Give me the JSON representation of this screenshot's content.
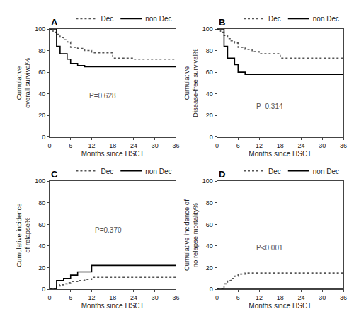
{
  "chart_data": [
    {
      "type": "step",
      "title": "A",
      "x_label": "Months since HSCT",
      "y_label": "Cumulative overall survival%",
      "annotations": [
        "P=0.628"
      ],
      "xlim": [
        0,
        36
      ],
      "ylim": [
        0,
        100
      ],
      "xticks": [
        0,
        6,
        12,
        18,
        24,
        30,
        36
      ],
      "yticks": [
        0,
        20,
        40,
        60,
        80,
        100
      ],
      "grid": false,
      "legend": "upper right",
      "series": [
        {
          "name": "Dec",
          "color": "#555555",
          "line_style": "dotted",
          "x": [
            0,
            1,
            2,
            3,
            4,
            5,
            6,
            8,
            10,
            12,
            18,
            24,
            30,
            36
          ],
          "values": [
            100,
            97,
            95,
            92,
            90,
            88,
            83,
            82,
            80,
            78,
            73,
            72,
            72,
            72
          ]
        },
        {
          "name": "non Dec",
          "color": "#000000",
          "line_style": "solid",
          "x": [
            0,
            2,
            3,
            5,
            6,
            8,
            10,
            36
          ],
          "values": [
            100,
            84,
            77,
            72,
            68,
            66,
            65,
            65
          ]
        }
      ]
    },
    {
      "type": "step",
      "title": "B",
      "x_label": "Months since HSCT",
      "y_label": "Cumulative Disease-free survival%",
      "annotations": [
        "P=0.314"
      ],
      "xlim": [
        0,
        36
      ],
      "ylim": [
        0,
        100
      ],
      "xticks": [
        0,
        6,
        12,
        18,
        24,
        30,
        36
      ],
      "yticks": [
        0,
        20,
        40,
        60,
        80,
        100
      ],
      "grid": false,
      "legend": "upper right",
      "series": [
        {
          "name": "Dec",
          "color": "#555555",
          "line_style": "dotted",
          "x": [
            0,
            1,
            2,
            3,
            4,
            5,
            6,
            8,
            10,
            12,
            18,
            24,
            30,
            36
          ],
          "values": [
            100,
            97,
            94,
            91,
            89,
            87,
            83,
            81,
            79,
            77,
            73,
            73,
            73,
            73
          ]
        },
        {
          "name": "non Dec",
          "color": "#000000",
          "line_style": "solid",
          "x": [
            0,
            2,
            3,
            5,
            6,
            8,
            36
          ],
          "values": [
            100,
            84,
            73,
            67,
            60,
            58,
            58
          ]
        }
      ]
    },
    {
      "type": "step",
      "title": "C",
      "x_label": "Months since HSCT",
      "y_label": "Cumulative incidence of relapse%",
      "annotations": [
        "P=0.370"
      ],
      "xlim": [
        0,
        36
      ],
      "ylim": [
        0,
        100
      ],
      "xticks": [
        0,
        6,
        12,
        18,
        24,
        30,
        36
      ],
      "yticks": [
        0,
        20,
        40,
        60,
        80,
        100
      ],
      "grid": false,
      "legend": "upper right",
      "series": [
        {
          "name": "Dec",
          "color": "#555555",
          "line_style": "dotted",
          "x": [
            0,
            2,
            3,
            4,
            5,
            6,
            8,
            10,
            12,
            36
          ],
          "values": [
            0,
            3,
            4,
            5,
            6,
            7,
            8,
            9,
            11,
            11
          ]
        },
        {
          "name": "non Dec",
          "color": "#000000",
          "line_style": "solid",
          "x": [
            0,
            2,
            4,
            6,
            8,
            12,
            36
          ],
          "values": [
            0,
            8,
            10,
            13,
            16,
            22,
            22
          ]
        }
      ]
    },
    {
      "type": "step",
      "title": "D",
      "x_label": "Months since HSCT",
      "y_label": "Cumulative incidence of no relapse mortality%",
      "annotations": [
        "P<0.001"
      ],
      "xlim": [
        0,
        36
      ],
      "ylim": [
        0,
        100
      ],
      "xticks": [
        0,
        6,
        12,
        18,
        24,
        30,
        36
      ],
      "yticks": [
        0,
        20,
        40,
        60,
        80,
        100
      ],
      "grid": false,
      "legend": "upper right",
      "series": [
        {
          "name": "Dec",
          "color": "#555555",
          "line_style": "dotted",
          "x": [
            0,
            2,
            3,
            4,
            5,
            6,
            8,
            12,
            36
          ],
          "values": [
            0,
            5,
            8,
            10,
            12,
            14,
            15,
            15,
            15
          ]
        },
        {
          "name": "non Dec",
          "color": "#000000",
          "line_style": "solid",
          "x": [
            0,
            36
          ],
          "values": [
            0,
            0
          ]
        }
      ]
    }
  ]
}
